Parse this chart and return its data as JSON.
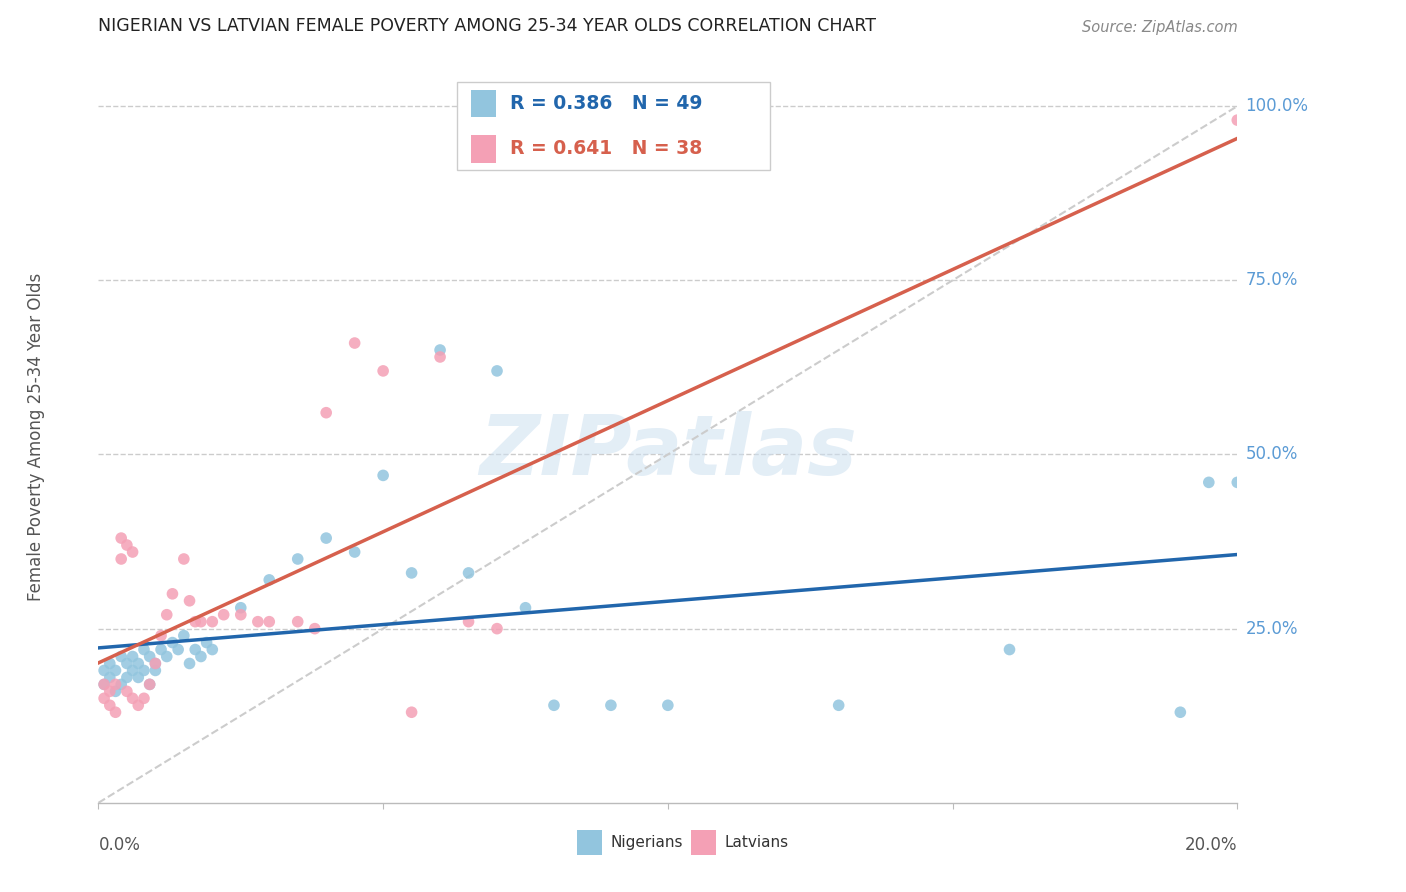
{
  "title": "NIGERIAN VS LATVIAN FEMALE POVERTY AMONG 25-34 YEAR OLDS CORRELATION CHART",
  "source": "Source: ZipAtlas.com",
  "ylabel": "Female Poverty Among 25-34 Year Olds",
  "right_yticks": [
    "100.0%",
    "75.0%",
    "50.0%",
    "25.0%"
  ],
  "right_ytick_vals": [
    1.0,
    0.75,
    0.5,
    0.25
  ],
  "xlim": [
    0.0,
    0.2
  ],
  "ylim": [
    0.0,
    1.05
  ],
  "nigerian_color": "#92c5de",
  "latvian_color": "#f4a0b5",
  "nigerian_line_color": "#2166ac",
  "latvian_line_color": "#d6604d",
  "diagonal_color": "#cccccc",
  "watermark": "ZIPatlas",
  "nig_x": [
    0.001,
    0.001,
    0.002,
    0.002,
    0.003,
    0.003,
    0.004,
    0.004,
    0.005,
    0.005,
    0.006,
    0.006,
    0.007,
    0.007,
    0.008,
    0.008,
    0.009,
    0.009,
    0.01,
    0.01,
    0.011,
    0.012,
    0.013,
    0.014,
    0.015,
    0.016,
    0.017,
    0.018,
    0.019,
    0.02,
    0.025,
    0.03,
    0.035,
    0.04,
    0.045,
    0.05,
    0.055,
    0.06,
    0.065,
    0.07,
    0.075,
    0.08,
    0.09,
    0.1,
    0.13,
    0.16,
    0.19,
    0.195,
    0.2
  ],
  "nig_y": [
    0.17,
    0.19,
    0.18,
    0.2,
    0.16,
    0.19,
    0.17,
    0.21,
    0.18,
    0.2,
    0.19,
    0.21,
    0.18,
    0.2,
    0.19,
    0.22,
    0.17,
    0.21,
    0.2,
    0.19,
    0.22,
    0.21,
    0.23,
    0.22,
    0.24,
    0.2,
    0.22,
    0.21,
    0.23,
    0.22,
    0.28,
    0.32,
    0.35,
    0.38,
    0.36,
    0.47,
    0.33,
    0.65,
    0.33,
    0.62,
    0.28,
    0.14,
    0.14,
    0.14,
    0.14,
    0.22,
    0.13,
    0.46,
    0.46
  ],
  "lat_x": [
    0.001,
    0.001,
    0.002,
    0.002,
    0.003,
    0.003,
    0.004,
    0.004,
    0.005,
    0.005,
    0.006,
    0.006,
    0.007,
    0.008,
    0.009,
    0.01,
    0.011,
    0.012,
    0.013,
    0.015,
    0.016,
    0.017,
    0.018,
    0.02,
    0.022,
    0.025,
    0.028,
    0.03,
    0.035,
    0.038,
    0.04,
    0.045,
    0.05,
    0.055,
    0.06,
    0.065,
    0.07,
    0.2
  ],
  "lat_y": [
    0.15,
    0.17,
    0.14,
    0.16,
    0.13,
    0.17,
    0.35,
    0.38,
    0.16,
    0.37,
    0.15,
    0.36,
    0.14,
    0.15,
    0.17,
    0.2,
    0.24,
    0.27,
    0.3,
    0.35,
    0.29,
    0.26,
    0.26,
    0.26,
    0.27,
    0.27,
    0.26,
    0.26,
    0.26,
    0.25,
    0.56,
    0.66,
    0.62,
    0.13,
    0.64,
    0.26,
    0.25,
    0.98
  ]
}
